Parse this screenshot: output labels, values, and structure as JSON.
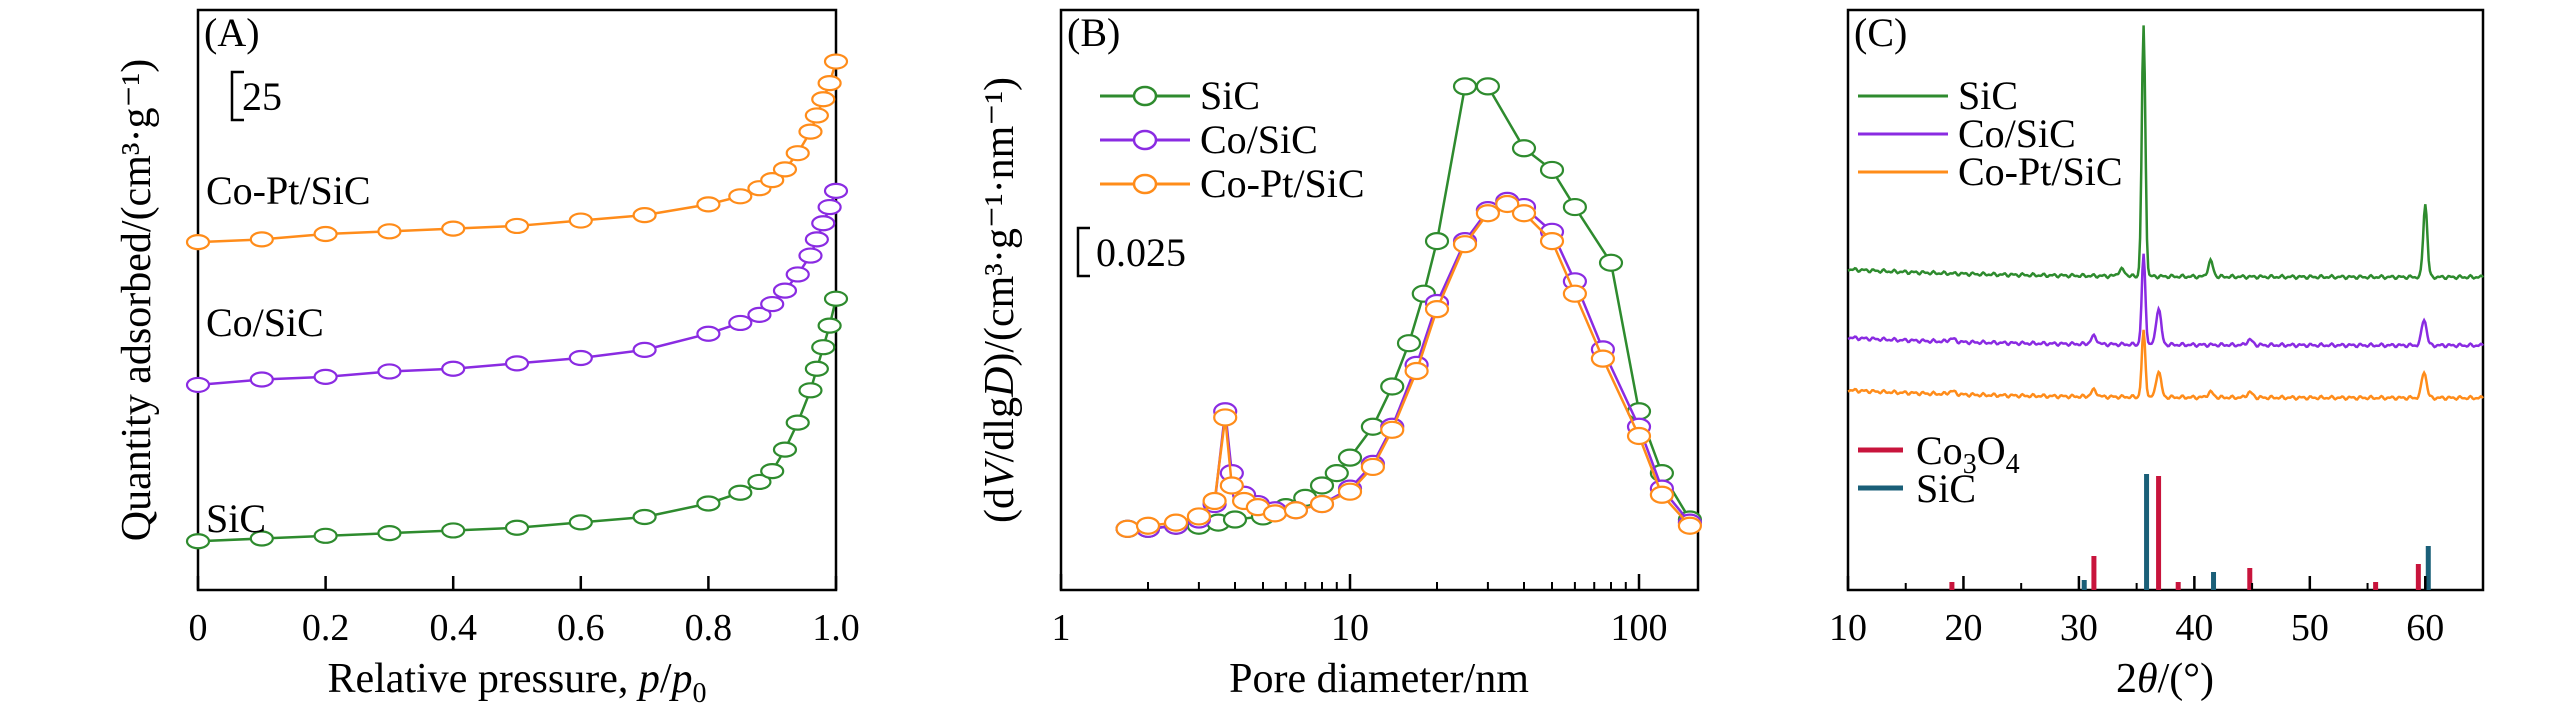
{
  "chart_data": [
    {
      "panel": "(A)",
      "type": "line",
      "xlabel_text": "Relative pressure, ",
      "xlabel_var": "p",
      "xlabel_slash": "/",
      "xlabel_p": "p",
      "xlabel_sub": "0",
      "ylabel": "Quantity adsorbed/(cm³·g⁻¹)",
      "scale_bar": "25",
      "xlim": [
        0,
        1.0
      ],
      "ylim": [
        0,
        190
      ],
      "xticks": [
        "0",
        "0.2",
        "0.4",
        "0.6",
        "0.8",
        "1.0"
      ],
      "xtick_values": [
        0,
        0.2,
        0.4,
        0.6,
        0.8,
        1.0
      ],
      "series": [
        {
          "name": "SiC",
          "color": "#2e8b2e",
          "x": [
            0.0,
            0.1,
            0.2,
            0.3,
            0.4,
            0.5,
            0.6,
            0.7,
            0.8,
            0.85,
            0.88,
            0.9,
            0.92,
            0.94,
            0.96,
            0.97,
            0.98,
            0.99,
            1.0
          ],
          "y": [
            4,
            5,
            6,
            7,
            8,
            9,
            11,
            13,
            18,
            22,
            26,
            30,
            38,
            48,
            60,
            68,
            76,
            84,
            94
          ]
        },
        {
          "name": "Co/SiC",
          "color": "#8a2be2",
          "x": [
            0.0,
            0.1,
            0.2,
            0.3,
            0.4,
            0.5,
            0.6,
            0.7,
            0.8,
            0.85,
            0.88,
            0.9,
            0.92,
            0.94,
            0.96,
            0.97,
            0.98,
            0.99,
            1.0
          ],
          "y": [
            62,
            64,
            65,
            67,
            68,
            70,
            72,
            75,
            81,
            85,
            88,
            92,
            97,
            103,
            110,
            116,
            122,
            128,
            134
          ]
        },
        {
          "name": "Co-Pt/SiC",
          "color": "#ff8c1a",
          "x": [
            0.0,
            0.1,
            0.2,
            0.3,
            0.4,
            0.5,
            0.6,
            0.7,
            0.8,
            0.85,
            0.88,
            0.9,
            0.92,
            0.94,
            0.96,
            0.97,
            0.98,
            0.99,
            1.0
          ],
          "y": [
            115,
            116,
            118,
            119,
            120,
            121,
            123,
            125,
            129,
            132,
            135,
            138,
            142,
            148,
            156,
            162,
            168,
            174,
            182
          ]
        }
      ],
      "curve_labels": [
        "Co-Pt/SiC",
        "Co/SiC",
        "SiC"
      ]
    },
    {
      "panel": "(B)",
      "type": "line",
      "xscale": "log",
      "xlabel": "Pore diameter/nm",
      "ylabel_open": "(d",
      "ylabel_V": "V",
      "ylabel_mid": "/dlg",
      "ylabel_D": "D",
      "ylabel_rest": ")/(cm³·g⁻¹·nm⁻¹)",
      "scale_bar": "0.025",
      "xlim": [
        1,
        160
      ],
      "ylim": [
        0,
        0.16
      ],
      "xticks": [
        "1",
        "10",
        "100"
      ],
      "xtick_values": [
        1,
        10,
        100
      ],
      "legend": [
        "SiC",
        "Co/SiC",
        "Co-Pt/SiC"
      ],
      "legend_position": "top-left",
      "series": [
        {
          "name": "SiC",
          "color": "#2e8b2e",
          "x": [
            1.7,
            2.0,
            2.5,
            3.0,
            3.5,
            4.0,
            5.0,
            6.0,
            7.0,
            8.0,
            9.0,
            10.0,
            12.0,
            14.0,
            16.0,
            18.0,
            20.0,
            25.0,
            30.0,
            40.0,
            50.0,
            60.0,
            80.0,
            100.0,
            120.0,
            150.0
          ],
          "y": [
            0.002,
            0.002,
            0.003,
            0.003,
            0.004,
            0.005,
            0.006,
            0.009,
            0.012,
            0.016,
            0.02,
            0.025,
            0.035,
            0.048,
            0.062,
            0.078,
            0.095,
            0.145,
            0.145,
            0.125,
            0.118,
            0.106,
            0.088,
            0.04,
            0.02,
            0.005
          ]
        },
        {
          "name": "Co/SiC",
          "color": "#8a2be2",
          "x": [
            1.7,
            2.0,
            2.5,
            3.0,
            3.4,
            3.7,
            3.9,
            4.3,
            4.8,
            5.5,
            6.5,
            8.0,
            10.0,
            12.0,
            14.0,
            17.0,
            20.0,
            25.0,
            30.0,
            35.0,
            40.0,
            50.0,
            60.0,
            75.0,
            100.0,
            120.0,
            150.0
          ],
          "y": [
            0.002,
            0.002,
            0.003,
            0.005,
            0.01,
            0.04,
            0.02,
            0.013,
            0.01,
            0.008,
            0.008,
            0.01,
            0.015,
            0.023,
            0.035,
            0.055,
            0.075,
            0.095,
            0.105,
            0.108,
            0.106,
            0.098,
            0.082,
            0.06,
            0.035,
            0.015,
            0.004
          ]
        },
        {
          "name": "Co-Pt/SiC",
          "color": "#ff8c1a",
          "x": [
            1.7,
            2.0,
            2.5,
            3.0,
            3.4,
            3.7,
            3.9,
            4.3,
            4.8,
            5.5,
            6.5,
            8.0,
            10.0,
            12.0,
            14.0,
            17.0,
            20.0,
            25.0,
            30.0,
            35.0,
            40.0,
            50.0,
            60.0,
            75.0,
            100.0,
            120.0,
            150.0
          ],
          "y": [
            0.002,
            0.003,
            0.004,
            0.006,
            0.011,
            0.038,
            0.016,
            0.011,
            0.009,
            0.007,
            0.008,
            0.01,
            0.014,
            0.022,
            0.034,
            0.053,
            0.073,
            0.094,
            0.104,
            0.107,
            0.104,
            0.095,
            0.078,
            0.057,
            0.032,
            0.013,
            0.003
          ]
        }
      ]
    },
    {
      "panel": "(C)",
      "type": "line",
      "xlabel_num": "2",
      "xlabel_theta": "θ",
      "xlabel_rest": "/(°)",
      "xlim": [
        10,
        65
      ],
      "xticks": [
        "10",
        "20",
        "30",
        "40",
        "50",
        "60"
      ],
      "xtick_values": [
        10,
        20,
        30,
        40,
        50,
        60
      ],
      "legend": [
        "SiC",
        "Co/SiC",
        "Co-Pt/SiC"
      ],
      "legend_position": "top-left",
      "series": [
        {
          "name": "SiC",
          "color": "#2e8b2e",
          "baseline": 0.62,
          "peaks": [
            [
              33.7,
              0.025,
              0.4
            ],
            [
              35.6,
              0.95,
              0.22
            ],
            [
              41.4,
              0.06,
              0.3
            ],
            [
              60.0,
              0.28,
              0.25
            ]
          ]
        },
        {
          "name": "Co/SiC",
          "color": "#8a2be2",
          "baseline": 0.36,
          "peaks": [
            [
              19.0,
              0.012,
              0.4
            ],
            [
              31.3,
              0.03,
              0.35
            ],
            [
              35.6,
              0.34,
              0.22
            ],
            [
              36.9,
              0.14,
              0.3
            ],
            [
              44.8,
              0.02,
              0.35
            ],
            [
              59.9,
              0.1,
              0.3
            ]
          ]
        },
        {
          "name": "Co-Pt/SiC",
          "color": "#ff8c1a",
          "baseline": 0.16,
          "peaks": [
            [
              19.0,
              0.012,
              0.4
            ],
            [
              31.3,
              0.025,
              0.35
            ],
            [
              35.6,
              0.25,
              0.22
            ],
            [
              36.9,
              0.1,
              0.3
            ],
            [
              41.4,
              0.02,
              0.35
            ],
            [
              44.8,
              0.02,
              0.35
            ],
            [
              59.9,
              0.1,
              0.3
            ]
          ]
        }
      ],
      "reference": {
        "legend": [
          {
            "name": "Co3O4",
            "label_main": "Co",
            "label_sub1": "3",
            "label_mid": "O",
            "label_sub2": "4",
            "color": "#c8143c"
          },
          {
            "name": "SiC",
            "label": "SiC",
            "color": "#1a5f78"
          }
        ],
        "Co3O4": [
          [
            19.0,
            0.04
          ],
          [
            31.3,
            0.17
          ],
          [
            36.9,
            0.57
          ],
          [
            38.6,
            0.04
          ],
          [
            44.8,
            0.11
          ],
          [
            55.7,
            0.04
          ],
          [
            59.4,
            0.13
          ]
        ],
        "SiC": [
          [
            30.2,
            0.05
          ],
          [
            35.6,
            0.58
          ],
          [
            41.4,
            0.09
          ],
          [
            60.0,
            0.22
          ]
        ]
      }
    }
  ]
}
